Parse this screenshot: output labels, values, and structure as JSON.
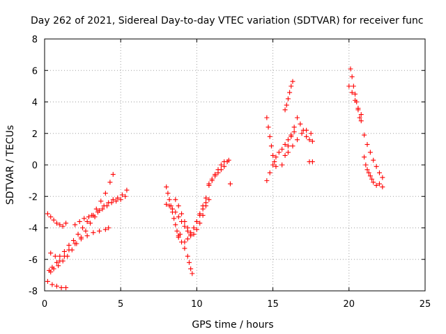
{
  "chart_data": {
    "type": "scatter",
    "title": "Day 262 of 2021, Sidereal Day-to-day VTEC variation (SDTVAR) for receiver func",
    "xlabel": "GPS time / hours",
    "ylabel": "SDTVAR / TECUs",
    "xlim": [
      0,
      25
    ],
    "ylim": [
      -8,
      8
    ],
    "xticks": [
      0,
      5,
      10,
      15,
      20,
      25
    ],
    "yticks": [
      -8,
      -6,
      -4,
      -2,
      0,
      2,
      4,
      6,
      8
    ],
    "grid": true,
    "marker": "+",
    "color": "#ff0000",
    "series": [
      {
        "name": "s1",
        "x": [
          0.2,
          0.4,
          0.6,
          0.8,
          1.0,
          1.2,
          1.4
        ],
        "y": [
          -3.1,
          -3.3,
          -3.5,
          -3.7,
          -3.8,
          -3.9,
          -3.7
        ]
      },
      {
        "name": "s2",
        "x": [
          0.2,
          0.5,
          0.8,
          1.1,
          1.4
        ],
        "y": [
          -7.4,
          -7.6,
          -7.7,
          -7.8,
          -7.8
        ]
      },
      {
        "name": "s3",
        "x": [
          0.3,
          0.5,
          0.8,
          1.0,
          1.3,
          1.6,
          1.9,
          2.2,
          2.5,
          2.8,
          3.1,
          3.4,
          3.7,
          4.0,
          4.3,
          4.5
        ],
        "y": [
          -6.7,
          -6.5,
          -6.2,
          -5.8,
          -5.5,
          -5.1,
          -4.8,
          -4.4,
          -4.0,
          -3.6,
          -3.2,
          -2.8,
          -2.3,
          -1.8,
          -1.1,
          -0.6
        ]
      },
      {
        "name": "s4",
        "x": [
          0.4,
          0.6,
          0.9,
          1.2,
          1.5,
          1.8,
          2.1,
          2.4,
          2.7,
          3.0,
          3.3,
          3.6,
          3.9,
          4.2,
          4.5,
          4.8,
          5.1,
          5.4
        ],
        "y": [
          -6.8,
          -6.6,
          -6.4,
          -6.1,
          -5.8,
          -5.4,
          -5.0,
          -4.6,
          -4.2,
          -3.7,
          -3.3,
          -2.9,
          -2.6,
          -2.4,
          -2.2,
          -2.1,
          -1.9,
          -1.6
        ]
      },
      {
        "name": "s5",
        "x": [
          0.4,
          0.7,
          1.0,
          1.3,
          1.6,
          2.0,
          2.4,
          2.8,
          3.2,
          3.6,
          4.0,
          4.2
        ],
        "y": [
          -5.6,
          -5.8,
          -6.1,
          -5.8,
          -5.4,
          -5.0,
          -4.7,
          -4.5,
          -4.3,
          -4.2,
          -4.1,
          -4.0
        ]
      },
      {
        "name": "s6",
        "x": [
          2.0,
          2.3,
          2.6,
          2.9,
          3.2,
          3.5,
          3.8,
          4.1,
          4.4,
          4.7,
          5.0,
          5.3
        ],
        "y": [
          -3.8,
          -3.6,
          -3.4,
          -3.3,
          -3.2,
          -3.0,
          -2.8,
          -2.6,
          -2.4,
          -2.3,
          -2.2,
          -2.0
        ]
      },
      {
        "name": "s7",
        "x": [
          8.0,
          8.1,
          8.2,
          8.3,
          8.4,
          8.5,
          8.6,
          8.7,
          8.8,
          8.9
        ],
        "y": [
          -1.4,
          -1.8,
          -2.2,
          -2.6,
          -3.0,
          -3.4,
          -3.8,
          -4.2,
          -4.6,
          -4.4
        ]
      },
      {
        "name": "s8",
        "x": [
          8.0,
          8.2,
          8.4,
          8.6,
          8.8,
          9.0,
          9.2,
          9.4,
          9.6,
          9.8,
          10.0,
          10.2,
          10.4,
          10.6
        ],
        "y": [
          -2.5,
          -2.6,
          -2.8,
          -3.0,
          -3.3,
          -3.6,
          -3.9,
          -4.2,
          -4.5,
          -4.4,
          -4.1,
          -3.7,
          -3.2,
          -2.6
        ]
      },
      {
        "name": "s9",
        "x": [
          8.6,
          8.8,
          9.0,
          9.2,
          9.4,
          9.6,
          9.8,
          10.0,
          10.2,
          10.4,
          10.6
        ],
        "y": [
          -2.2,
          -2.6,
          -3.1,
          -3.6,
          -4.0,
          -4.3,
          -4.0,
          -3.6,
          -3.1,
          -2.6,
          -2.1
        ]
      },
      {
        "name": "s10",
        "x": [
          8.8,
          9.0,
          9.2,
          9.4,
          9.5,
          9.6,
          9.7
        ],
        "y": [
          -4.5,
          -4.9,
          -5.3,
          -5.8,
          -6.2,
          -6.6,
          -6.9
        ]
      },
      {
        "name": "s11",
        "x": [
          9.2,
          9.4,
          9.6,
          9.8,
          10.0,
          10.2,
          10.4,
          10.6,
          10.8
        ],
        "y": [
          -4.9,
          -4.7,
          -4.4,
          -4.0,
          -3.6,
          -3.2,
          -2.8,
          -2.4,
          -2.2
        ]
      },
      {
        "name": "s12",
        "x": [
          10.8,
          11.0,
          11.2,
          11.4,
          11.6,
          11.8,
          12.0
        ],
        "y": [
          -1.2,
          -0.9,
          -0.7,
          -0.5,
          -0.3,
          -0.1,
          0.2
        ]
      },
      {
        "name": "s13",
        "x": [
          10.8,
          11.0,
          11.2,
          11.4,
          11.6,
          11.8,
          12.1,
          12.2
        ],
        "y": [
          -1.3,
          -1.0,
          -0.6,
          -0.3,
          0.0,
          0.2,
          0.3,
          -1.2
        ]
      },
      {
        "name": "s14",
        "x": [
          14.6,
          14.7,
          14.8,
          14.9,
          15.0,
          15.1,
          15.2
        ],
        "y": [
          3.0,
          2.4,
          1.8,
          1.2,
          0.6,
          0.2,
          -0.1
        ]
      },
      {
        "name": "s15",
        "x": [
          14.6,
          14.8,
          15.0,
          15.2,
          15.4,
          15.6,
          15.8,
          16.0,
          16.2,
          16.4
        ],
        "y": [
          -1.0,
          -0.5,
          0.0,
          0.5,
          0.8,
          1.0,
          1.3,
          1.6,
          1.9,
          2.1
        ]
      },
      {
        "name": "s16",
        "x": [
          15.6,
          15.8,
          16.0,
          16.2,
          16.4,
          16.6,
          16.8,
          17.0,
          17.2,
          17.4,
          17.6
        ],
        "y": [
          0.0,
          0.6,
          1.2,
          1.8,
          2.4,
          3.0,
          2.6,
          2.2,
          1.8,
          1.6,
          1.5
        ]
      },
      {
        "name": "s17",
        "x": [
          15.8,
          15.9,
          16.0,
          16.1,
          16.2,
          16.3
        ],
        "y": [
          3.5,
          3.8,
          4.2,
          4.6,
          5.0,
          5.3
        ]
      },
      {
        "name": "s18",
        "x": [
          16.0,
          16.3,
          16.6,
          16.9,
          17.2,
          17.5
        ],
        "y": [
          0.8,
          1.2,
          1.6,
          2.0,
          2.2,
          2.0
        ]
      },
      {
        "name": "s19",
        "x": [
          17.4,
          17.6
        ],
        "y": [
          0.2,
          0.2
        ]
      },
      {
        "name": "s20",
        "x": [
          20.1,
          20.2,
          20.3,
          20.4,
          20.5,
          20.6,
          20.7,
          20.8
        ],
        "y": [
          6.1,
          5.6,
          5.0,
          4.5,
          4.0,
          3.5,
          3.0,
          2.8
        ]
      },
      {
        "name": "s21",
        "x": [
          20.0,
          20.2,
          20.4,
          20.6,
          20.8
        ],
        "y": [
          5.0,
          4.6,
          4.1,
          3.6,
          3.2
        ]
      },
      {
        "name": "s22",
        "x": [
          21.0,
          21.2,
          21.4,
          21.6,
          21.8,
          22.0,
          22.2
        ],
        "y": [
          1.9,
          1.3,
          0.8,
          0.3,
          -0.1,
          -0.5,
          -0.8
        ]
      },
      {
        "name": "s23",
        "x": [
          21.0,
          21.1,
          21.2,
          21.3,
          21.4,
          21.5,
          21.6,
          21.8,
          22.0,
          22.2
        ],
        "y": [
          0.5,
          0.0,
          -0.3,
          -0.5,
          -0.7,
          -0.9,
          -1.1,
          -1.3,
          -1.2,
          -1.4
        ]
      }
    ]
  }
}
